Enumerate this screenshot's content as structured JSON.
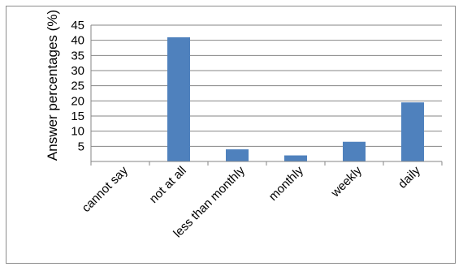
{
  "chart_data": {
    "type": "bar",
    "title": "",
    "xlabel": "",
    "ylabel": "Answer percentages (%)",
    "categories": [
      "cannot say",
      "not at all",
      "less than monthly",
      "monthly",
      "weekly",
      "daily"
    ],
    "values": [
      0,
      41,
      4,
      2,
      6.5,
      19.5
    ],
    "ylim": [
      0,
      45
    ],
    "yticks": [
      5,
      10,
      15,
      20,
      25,
      30,
      35,
      40,
      45
    ],
    "grid": true,
    "legend": "none",
    "bar_color": "#4f81bd",
    "grid_color": "#868686"
  }
}
